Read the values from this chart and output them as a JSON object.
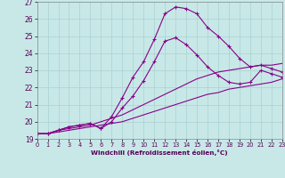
{
  "xlabel": "Windchill (Refroidissement éolien,°C)",
  "background_color": "#c8e8e8",
  "grid_color": "#aed4d4",
  "line_color": "#880088",
  "xlim": [
    0,
    23
  ],
  "ylim": [
    19,
    27
  ],
  "yticks": [
    19,
    20,
    21,
    22,
    23,
    24,
    25,
    26,
    27
  ],
  "xticks": [
    0,
    1,
    2,
    3,
    4,
    5,
    6,
    7,
    8,
    9,
    10,
    11,
    12,
    13,
    14,
    15,
    16,
    17,
    18,
    19,
    20,
    21,
    22,
    23
  ],
  "lines": [
    {
      "x": [
        0,
        1,
        2,
        3,
        4,
        5,
        6,
        7,
        8,
        9,
        10,
        11,
        12,
        13,
        14,
        15,
        16,
        17,
        18,
        19,
        20,
        21,
        22,
        23
      ],
      "y": [
        19.3,
        19.3,
        19.5,
        19.7,
        19.8,
        19.9,
        19.6,
        20.3,
        21.4,
        22.6,
        23.5,
        24.8,
        26.3,
        26.7,
        26.6,
        26.3,
        25.5,
        25.0,
        24.4,
        23.7,
        23.2,
        23.3,
        23.1,
        22.9
      ],
      "marker": true
    },
    {
      "x": [
        0,
        1,
        2,
        3,
        4,
        5,
        6,
        7,
        8,
        9,
        10,
        11,
        12,
        13,
        14,
        15,
        16,
        17,
        18,
        19,
        20,
        21,
        22,
        23
      ],
      "y": [
        19.3,
        19.3,
        19.5,
        19.7,
        19.8,
        19.9,
        19.6,
        20.0,
        20.8,
        21.5,
        22.4,
        23.5,
        24.7,
        24.9,
        24.5,
        23.9,
        23.2,
        22.7,
        22.3,
        22.2,
        22.3,
        23.0,
        22.8,
        22.6
      ],
      "marker": true
    },
    {
      "x": [
        0,
        1,
        2,
        3,
        4,
        5,
        6,
        7,
        8,
        9,
        10,
        11,
        12,
        13,
        14,
        15,
        16,
        17,
        18,
        19,
        20,
        21,
        22,
        23
      ],
      "y": [
        19.3,
        19.3,
        19.5,
        19.6,
        19.7,
        19.8,
        20.0,
        20.2,
        20.4,
        20.7,
        21.0,
        21.3,
        21.6,
        21.9,
        22.2,
        22.5,
        22.7,
        22.9,
        23.0,
        23.1,
        23.2,
        23.3,
        23.3,
        23.4
      ],
      "marker": false
    },
    {
      "x": [
        0,
        1,
        2,
        3,
        4,
        5,
        6,
        7,
        8,
        9,
        10,
        11,
        12,
        13,
        14,
        15,
        16,
        17,
        18,
        19,
        20,
        21,
        22,
        23
      ],
      "y": [
        19.3,
        19.3,
        19.4,
        19.5,
        19.6,
        19.7,
        19.8,
        19.9,
        20.0,
        20.2,
        20.4,
        20.6,
        20.8,
        21.0,
        21.2,
        21.4,
        21.6,
        21.7,
        21.9,
        22.0,
        22.1,
        22.2,
        22.3,
        22.5
      ],
      "marker": false
    }
  ]
}
